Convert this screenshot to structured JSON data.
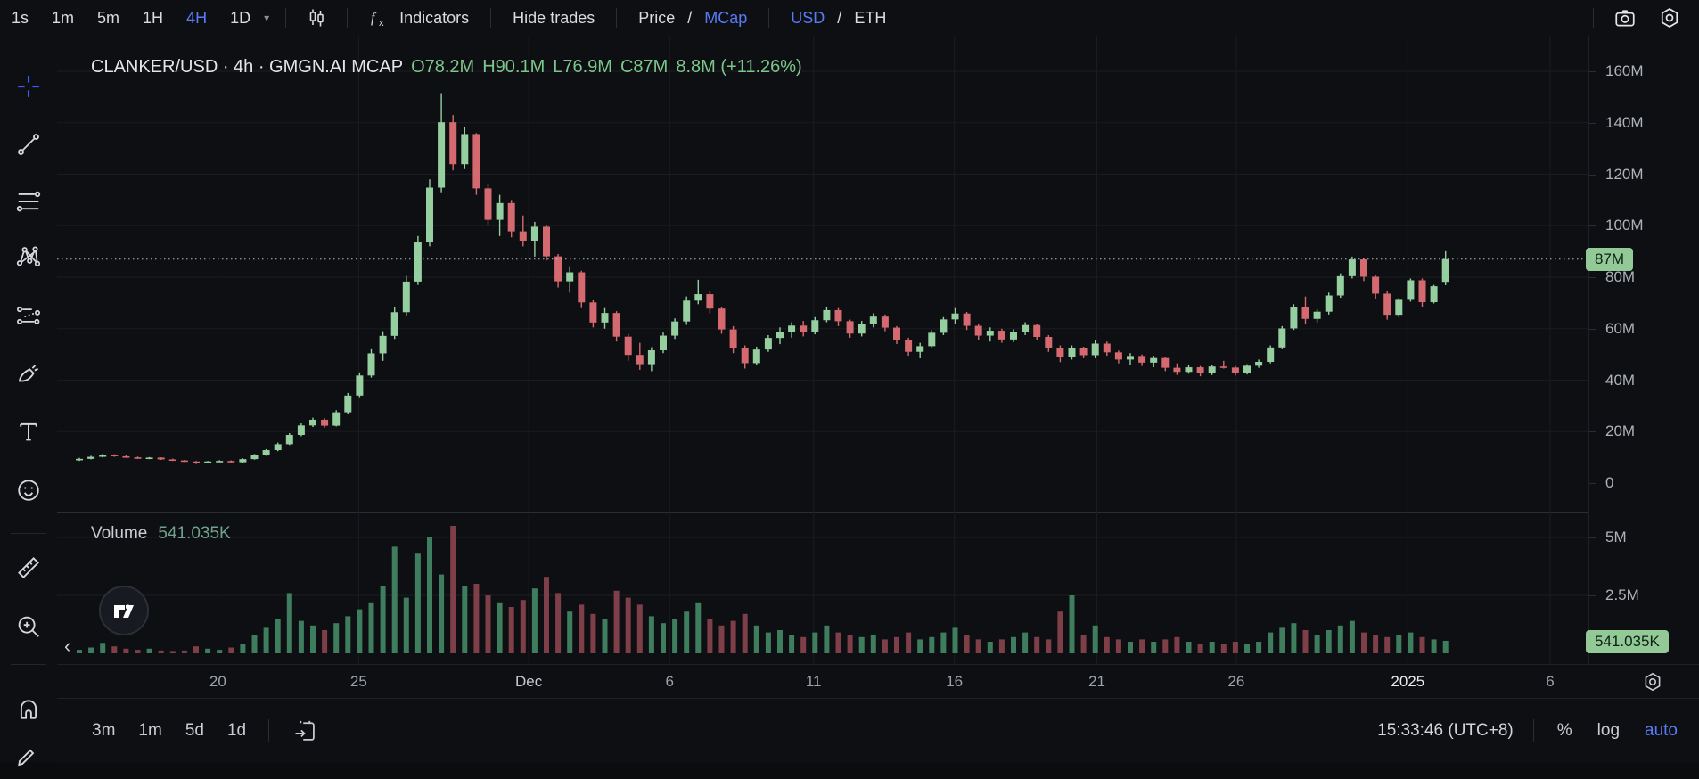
{
  "topbar": {
    "timeframes": [
      {
        "label": "1s",
        "active": false
      },
      {
        "label": "1m",
        "active": false
      },
      {
        "label": "5m",
        "active": false
      },
      {
        "label": "1H",
        "active": false
      },
      {
        "label": "4H",
        "active": true
      },
      {
        "label": "1D",
        "active": false
      }
    ],
    "caret": "▾",
    "chart_type_icon": "candles-icon",
    "indicators_label": "Indicators",
    "hide_trades_label": "Hide trades",
    "price_label": "Price",
    "slash": "/",
    "mcap_label": "MCap",
    "usd_label": "USD",
    "eth_label": "ETH",
    "camera_icon": "camera-icon",
    "settings_icon": "settings-gear-icon"
  },
  "left_toolbar": {
    "tools": [
      "crosshair-icon",
      "trend-line-icon",
      "fib-retracement-icon",
      "xabcd-pattern-icon",
      "forecast-icon",
      "brush-icon",
      "text-icon",
      "emoji-icon",
      "ruler-icon",
      "zoom-in-icon",
      "magnet-icon",
      "edit-pencil-icon"
    ]
  },
  "chart": {
    "legend": {
      "title": "CLANKER/USD · 4h · GMGN.AI MCAP",
      "open": "O78.2M",
      "high": "H90.1M",
      "low": "L76.9M",
      "close": "C87M",
      "change": "8.8M (+11.26%)"
    },
    "volume_legend": {
      "title": "Volume",
      "value": "541.035K"
    },
    "price_axis": {
      "labels": [
        {
          "text": "160M",
          "value": 160
        },
        {
          "text": "140M",
          "value": 140
        },
        {
          "text": "120M",
          "value": 120
        },
        {
          "text": "100M",
          "value": 100
        },
        {
          "text": "80M",
          "value": 80
        },
        {
          "text": "60M",
          "value": 60
        },
        {
          "text": "40M",
          "value": 40
        },
        {
          "text": "20M",
          "value": 20
        },
        {
          "text": "0",
          "value": 0
        }
      ],
      "last_price_badge": "87M"
    },
    "volume_axis": {
      "labels": [
        {
          "text": "5M",
          "value": 5
        },
        {
          "text": "2.5M",
          "value": 2.5
        }
      ],
      "last_volume_badge": "541.035K"
    },
    "time_axis": {
      "labels": [
        {
          "text": "20",
          "pos": 0.105,
          "kind": "day"
        },
        {
          "text": "25",
          "pos": 0.197,
          "kind": "day"
        },
        {
          "text": "Dec",
          "pos": 0.308,
          "kind": "month"
        },
        {
          "text": "6",
          "pos": 0.4,
          "kind": "day"
        },
        {
          "text": "11",
          "pos": 0.494,
          "kind": "day"
        },
        {
          "text": "16",
          "pos": 0.586,
          "kind": "day"
        },
        {
          "text": "21",
          "pos": 0.679,
          "kind": "day"
        },
        {
          "text": "26",
          "pos": 0.77,
          "kind": "day"
        },
        {
          "text": "2025",
          "pos": 0.882,
          "kind": "year"
        },
        {
          "text": "6",
          "pos": 0.975,
          "kind": "day"
        }
      ]
    }
  },
  "chart_data": {
    "type": "candlestick+volume",
    "symbol": "CLANKER/USD",
    "interval": "4h",
    "source": "GMGN.AI MCAP",
    "unit": "M (USD market cap)",
    "ohlc_last": {
      "open": 78.2,
      "high": 90.1,
      "low": 76.9,
      "close": 87.0,
      "change_abs": "8.8M",
      "change_pct": "+11.26%"
    },
    "last_price": 87,
    "last_volume": 0.541,
    "price_gridlines": [
      20,
      40,
      60,
      80,
      100,
      120,
      140,
      160
    ],
    "volume_gridlines": [
      2.5,
      5
    ],
    "ylim_price": [
      0,
      173
    ],
    "ylim_volume": [
      0,
      6
    ],
    "candles": [
      [
        9.0,
        9.8,
        8.6,
        9.4
      ],
      [
        9.4,
        10.6,
        9.2,
        10.2
      ],
      [
        10.2,
        11.4,
        9.9,
        11.0
      ],
      [
        11.0,
        11.2,
        10.2,
        10.4
      ],
      [
        10.4,
        10.8,
        9.8,
        10.0
      ],
      [
        10.0,
        10.3,
        9.4,
        9.6
      ],
      [
        9.6,
        10.1,
        9.3,
        9.9
      ],
      [
        9.9,
        10.0,
        9.0,
        9.2
      ],
      [
        9.2,
        9.5,
        8.6,
        8.8
      ],
      [
        8.8,
        9.0,
        8.2,
        8.4
      ],
      [
        8.4,
        8.6,
        7.4,
        7.9
      ],
      [
        7.9,
        8.6,
        7.7,
        8.4
      ],
      [
        8.4,
        8.9,
        8.1,
        8.6
      ],
      [
        8.6,
        8.8,
        7.8,
        8.1
      ],
      [
        8.1,
        9.6,
        7.9,
        9.3
      ],
      [
        9.3,
        11.3,
        9.1,
        10.9
      ],
      [
        10.9,
        13.2,
        10.6,
        12.8
      ],
      [
        12.8,
        15.7,
        12.4,
        15.1
      ],
      [
        15.1,
        19.4,
        14.8,
        18.7
      ],
      [
        18.7,
        23.2,
        18.2,
        22.4
      ],
      [
        22.4,
        25.4,
        21.8,
        24.6
      ],
      [
        24.6,
        25.2,
        21.6,
        22.3
      ],
      [
        22.3,
        28.3,
        22.0,
        27.5
      ],
      [
        27.5,
        35.0,
        27.0,
        34.0
      ],
      [
        34.0,
        43.0,
        33.4,
        41.8
      ],
      [
        41.8,
        52.0,
        41.0,
        50.4
      ],
      [
        50.4,
        59.0,
        47.5,
        57.2
      ],
      [
        57.2,
        68.5,
        56.0,
        66.4
      ],
      [
        66.4,
        80.5,
        65.0,
        78.3
      ],
      [
        78.3,
        96.0,
        77.0,
        93.5
      ],
      [
        93.5,
        118.0,
        92.0,
        114.8
      ],
      [
        114.8,
        151.5,
        113.0,
        140.2
      ],
      [
        140.2,
        143.0,
        121.5,
        123.9
      ],
      [
        123.9,
        138.5,
        122.0,
        135.6
      ],
      [
        135.6,
        136.0,
        112.0,
        114.5
      ],
      [
        114.5,
        116.5,
        100.0,
        102.3
      ],
      [
        102.3,
        112.0,
        96.0,
        108.8
      ],
      [
        108.8,
        110.0,
        95.5,
        97.8
      ],
      [
        97.8,
        104.0,
        92.0,
        94.2
      ],
      [
        94.2,
        101.5,
        88.0,
        99.6
      ],
      [
        99.6,
        100.2,
        86.5,
        88.1
      ],
      [
        88.1,
        89.0,
        76.0,
        78.4
      ],
      [
        78.4,
        84.0,
        74.0,
        81.9
      ],
      [
        81.9,
        82.5,
        68.0,
        70.2
      ],
      [
        70.2,
        71.0,
        60.5,
        62.4
      ],
      [
        62.4,
        68.0,
        60.0,
        66.1
      ],
      [
        66.1,
        66.8,
        55.0,
        56.9
      ],
      [
        56.9,
        58.0,
        47.5,
        49.8
      ],
      [
        49.8,
        54.5,
        44.0,
        46.2
      ],
      [
        46.2,
        52.8,
        43.5,
        51.6
      ],
      [
        51.6,
        58.5,
        50.5,
        57.3
      ],
      [
        57.3,
        64.0,
        56.0,
        62.8
      ],
      [
        62.8,
        72.5,
        61.5,
        70.9
      ],
      [
        70.9,
        79.0,
        69.5,
        73.4
      ],
      [
        73.4,
        74.5,
        66.0,
        67.8
      ],
      [
        67.8,
        68.5,
        58.0,
        59.7
      ],
      [
        59.7,
        61.0,
        50.5,
        52.4
      ],
      [
        52.4,
        53.5,
        44.5,
        46.6
      ],
      [
        46.6,
        53.0,
        45.8,
        51.9
      ],
      [
        51.9,
        57.5,
        51.0,
        56.4
      ],
      [
        56.4,
        60.5,
        54.0,
        58.8
      ],
      [
        58.8,
        62.5,
        56.5,
        61.2
      ],
      [
        61.2,
        63.0,
        57.0,
        58.6
      ],
      [
        58.6,
        64.5,
        57.8,
        63.3
      ],
      [
        63.3,
        68.5,
        62.5,
        67.2
      ],
      [
        67.2,
        68.0,
        61.0,
        62.9
      ],
      [
        62.9,
        63.5,
        56.5,
        58.1
      ],
      [
        58.1,
        63.0,
        57.0,
        61.8
      ],
      [
        61.8,
        66.0,
        60.5,
        64.7
      ],
      [
        64.7,
        65.5,
        59.0,
        60.4
      ],
      [
        60.4,
        61.0,
        54.0,
        55.6
      ],
      [
        55.6,
        56.5,
        49.5,
        51.0
      ],
      [
        51.0,
        54.5,
        48.5,
        53.2
      ],
      [
        53.2,
        59.5,
        52.5,
        58.4
      ],
      [
        58.4,
        64.5,
        57.5,
        63.6
      ],
      [
        63.6,
        68.0,
        62.0,
        65.9
      ],
      [
        65.9,
        66.5,
        59.5,
        61.1
      ],
      [
        61.1,
        62.0,
        55.5,
        57.3
      ],
      [
        57.3,
        60.5,
        55.0,
        59.2
      ],
      [
        59.2,
        60.0,
        54.5,
        55.8
      ],
      [
        55.8,
        59.8,
        54.8,
        58.7
      ],
      [
        58.7,
        62.5,
        57.5,
        61.4
      ],
      [
        61.4,
        62.0,
        55.5,
        56.8
      ],
      [
        56.8,
        57.5,
        51.0,
        52.6
      ],
      [
        52.6,
        53.5,
        47.0,
        48.9
      ],
      [
        48.9,
        53.5,
        48.0,
        52.3
      ],
      [
        52.3,
        53.0,
        48.5,
        49.7
      ],
      [
        49.7,
        55.5,
        48.5,
        54.2
      ],
      [
        54.2,
        55.0,
        49.5,
        50.8
      ],
      [
        50.8,
        51.5,
        46.5,
        48.0
      ],
      [
        48.0,
        50.5,
        46.0,
        49.4
      ],
      [
        49.4,
        50.0,
        45.5,
        46.8
      ],
      [
        46.8,
        49.5,
        45.0,
        48.6
      ],
      [
        48.6,
        49.0,
        43.5,
        44.8
      ],
      [
        44.8,
        46.5,
        42.0,
        43.2
      ],
      [
        43.2,
        45.8,
        42.5,
        45.0
      ],
      [
        45.0,
        45.5,
        41.5,
        42.6
      ],
      [
        42.6,
        46.0,
        42.0,
        45.3
      ],
      [
        45.3,
        47.5,
        44.5,
        44.9
      ],
      [
        44.9,
        45.5,
        41.8,
        42.9
      ],
      [
        42.9,
        46.2,
        42.2,
        45.6
      ],
      [
        45.6,
        48.0,
        44.8,
        47.1
      ],
      [
        47.1,
        53.5,
        46.5,
        52.7
      ],
      [
        52.7,
        61.0,
        52.0,
        60.1
      ],
      [
        60.1,
        69.5,
        59.5,
        68.4
      ],
      [
        68.4,
        72.5,
        62.0,
        63.8
      ],
      [
        63.8,
        67.5,
        62.5,
        66.6
      ],
      [
        66.6,
        74.0,
        65.5,
        72.9
      ],
      [
        72.9,
        81.5,
        72.0,
        80.4
      ],
      [
        80.4,
        88.0,
        79.5,
        86.9
      ],
      [
        86.9,
        87.5,
        78.5,
        80.2
      ],
      [
        80.2,
        81.0,
        71.5,
        73.6
      ],
      [
        73.6,
        74.5,
        63.5,
        65.4
      ],
      [
        65.4,
        72.0,
        64.5,
        71.2
      ],
      [
        71.2,
        79.5,
        70.5,
        78.8
      ],
      [
        78.8,
        79.5,
        68.5,
        70.3
      ],
      [
        70.3,
        77.0,
        69.8,
        76.5
      ],
      [
        78.2,
        90.1,
        76.9,
        87.0
      ]
    ],
    "volumes": [
      0.15,
      0.25,
      0.45,
      0.3,
      0.2,
      0.15,
      0.2,
      0.12,
      0.1,
      0.12,
      0.3,
      0.2,
      0.15,
      0.25,
      0.4,
      0.8,
      1.1,
      1.5,
      2.6,
      1.4,
      1.2,
      1.0,
      1.3,
      1.6,
      1.9,
      2.2,
      2.9,
      4.6,
      2.4,
      4.3,
      5.0,
      3.4,
      5.5,
      2.9,
      3.0,
      2.5,
      2.2,
      2.0,
      2.3,
      2.8,
      3.3,
      2.6,
      1.8,
      2.1,
      1.7,
      1.5,
      2.7,
      2.4,
      2.1,
      1.6,
      1.3,
      1.5,
      1.8,
      2.2,
      1.5,
      1.2,
      1.4,
      1.7,
      1.2,
      0.9,
      1.0,
      0.8,
      0.7,
      0.9,
      1.2,
      0.9,
      0.8,
      0.7,
      0.8,
      0.6,
      0.7,
      0.9,
      0.6,
      0.7,
      0.9,
      1.1,
      0.8,
      0.6,
      0.5,
      0.6,
      0.7,
      0.9,
      0.7,
      0.6,
      1.8,
      2.5,
      0.8,
      1.2,
      0.7,
      0.6,
      0.5,
      0.6,
      0.5,
      0.6,
      0.7,
      0.5,
      0.4,
      0.5,
      0.4,
      0.5,
      0.4,
      0.5,
      0.9,
      1.1,
      1.3,
      1.0,
      0.8,
      1.0,
      1.2,
      1.4,
      0.9,
      0.8,
      0.7,
      0.8,
      0.9,
      0.7,
      0.6,
      0.54
    ]
  },
  "bottom_toolbar": {
    "ranges": [
      {
        "label": "3m"
      },
      {
        "label": "1m"
      },
      {
        "label": "5d"
      },
      {
        "label": "1d"
      }
    ],
    "goto_date_icon": "go-to-date-icon",
    "clock": "15:33:46 (UTC+8)",
    "percent_label": "%",
    "log_label": "log",
    "auto_label": "auto"
  },
  "colors": {
    "accent_blue": "#587bf7",
    "candle_up": "#95ce9f",
    "candle_down": "#d4696f",
    "volume_up": "#3f7d5f",
    "volume_down": "#7e3f49",
    "price_badge_bg": "#92c997",
    "price_badge_text": "#0d2013",
    "ohlc_text": "#7cc88c",
    "volume_value_text": "#6fa28c",
    "grid": "#1a1c21",
    "dotted_line": "#b7bcc4",
    "axis_text": "#aeb2bb"
  }
}
